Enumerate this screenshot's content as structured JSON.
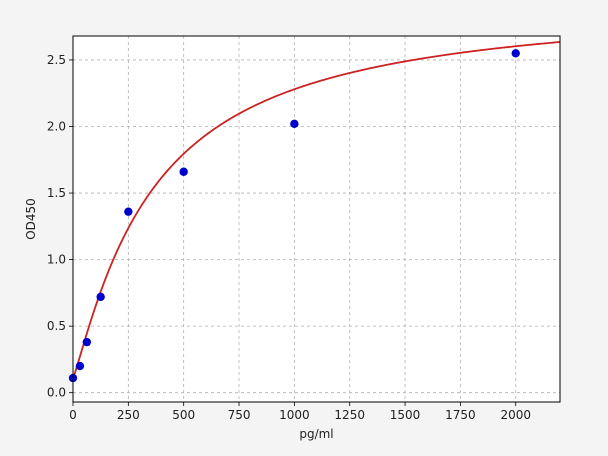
{
  "chart_data": {
    "type": "scatter",
    "title": "",
    "xlabel": "pg/ml",
    "ylabel": "OD450",
    "xlim": [
      0,
      2200
    ],
    "ylim": [
      -0.07,
      2.68
    ],
    "xticks": [
      0,
      250,
      500,
      750,
      1000,
      1250,
      1500,
      1750,
      2000
    ],
    "yticks": [
      0.0,
      0.5,
      1.0,
      1.5,
      2.0,
      2.5
    ],
    "xtick_labels": [
      "0",
      "250",
      "500",
      "750",
      "1000",
      "1250",
      "1500",
      "1750",
      "2000"
    ],
    "ytick_labels": [
      "0.0",
      "0.5",
      "1.0",
      "1.5",
      "2.0",
      "2.5"
    ],
    "grid": true,
    "points": {
      "x": [
        0,
        31.25,
        62.5,
        125,
        250,
        500,
        1000,
        2000
      ],
      "y": [
        0.11,
        0.2,
        0.38,
        0.72,
        1.36,
        1.66,
        2.02,
        2.55
      ],
      "color": "#0000cc"
    },
    "curve": {
      "type": "four-parameter-logistic",
      "color": "#cc2222",
      "params": {
        "bottom": 0.11,
        "top": 2.95,
        "ec50": 360,
        "hill": 1.15
      },
      "x_range": [
        0,
        2200
      ]
    }
  }
}
